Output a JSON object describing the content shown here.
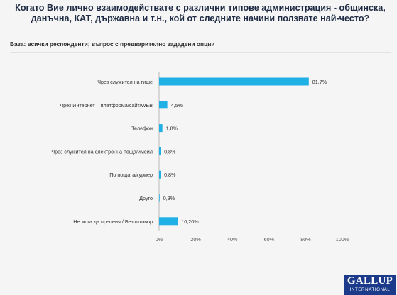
{
  "header": {
    "title": "Когато Вие лично взаимодействате с различни типове администрация - общинска, данъчна, КАТ, държавна и т.н., кой от следните начини ползвате най-често?",
    "base_note": "База: всички респонденти; въпрос с предварително зададени опции"
  },
  "chart_data": {
    "type": "bar",
    "orientation": "horizontal",
    "categories": [
      "Чрез служител на гише",
      "Чрез Интернет – платформа/сайт/WEB",
      "Телефон",
      "Чрез служител на електронна поща/имейл",
      "По пощата/куриер",
      "Друго",
      "Не мога да преценя / Без отговор"
    ],
    "values": [
      81.7,
      4.5,
      1.8,
      0.8,
      0.8,
      0.3,
      10.2
    ],
    "value_labels": [
      "81,7%",
      "4,5%",
      "1,8%",
      "0,8%",
      "0,8%",
      "0,3%",
      "10,20%"
    ],
    "xlim": [
      0,
      100
    ],
    "x_ticks": [
      0,
      20,
      40,
      60,
      80,
      100
    ],
    "x_tick_labels": [
      "0%",
      "20%",
      "40%",
      "60%",
      "80%",
      "100%"
    ],
    "bar_color": "#1fb0e6",
    "grid": false,
    "legend": "none"
  },
  "logo": {
    "main": "GALLUP",
    "sub": "INTERNATIONAL"
  }
}
